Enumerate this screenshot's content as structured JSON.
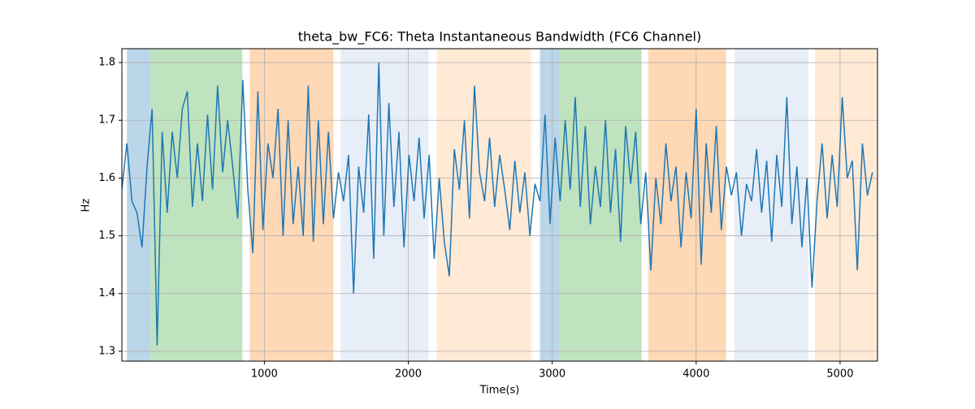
{
  "chart_data": {
    "type": "line",
    "title": "theta_bw_FC6: Theta Instantaneous Bandwidth (FC6 Channel)",
    "xlabel": "Time(s)",
    "ylabel": "Hz",
    "xlim": [
      10,
      5260
    ],
    "ylim": [
      1.283,
      1.824
    ],
    "xticks": [
      1000,
      2000,
      3000,
      4000,
      5000
    ],
    "yticks": [
      1.3,
      1.4,
      1.5,
      1.6,
      1.7,
      1.8
    ],
    "grid": true,
    "span_opacity": 0.3,
    "spans": [
      {
        "x0": 45,
        "x1": 209,
        "color": "#1f77b4"
      },
      {
        "x0": 209,
        "x1": 847,
        "color": "#2ca02c"
      },
      {
        "x0": 898,
        "x1": 1480,
        "color": "#ff7f0e"
      },
      {
        "x0": 1531,
        "x1": 2141,
        "color": "#aec7e8"
      },
      {
        "x0": 2198,
        "x1": 2853,
        "color": "#ffbb78"
      },
      {
        "x0": 2915,
        "x1": 3051,
        "color": "#1f77b4"
      },
      {
        "x0": 3051,
        "x1": 3621,
        "color": "#2ca02c"
      },
      {
        "x0": 3667,
        "x1": 4209,
        "color": "#ff7f0e"
      },
      {
        "x0": 4266,
        "x1": 4780,
        "color": "#aec7e8"
      },
      {
        "x0": 4825,
        "x1": 5260,
        "color": "#ffbb78"
      }
    ],
    "x": [
      10,
      45,
      80,
      115,
      150,
      185,
      220,
      255,
      290,
      325,
      360,
      395,
      430,
      465,
      500,
      535,
      570,
      605,
      640,
      675,
      710,
      745,
      780,
      815,
      850,
      885,
      920,
      955,
      990,
      1025,
      1060,
      1095,
      1130,
      1165,
      1200,
      1235,
      1270,
      1305,
      1340,
      1375,
      1410,
      1445,
      1480,
      1515,
      1550,
      1585,
      1620,
      1655,
      1690,
      1725,
      1760,
      1795,
      1830,
      1865,
      1900,
      1935,
      1970,
      2005,
      2040,
      2075,
      2110,
      2145,
      2180,
      2215,
      2250,
      2285,
      2320,
      2355,
      2390,
      2425,
      2460,
      2495,
      2530,
      2565,
      2600,
      2635,
      2670,
      2705,
      2740,
      2775,
      2810,
      2845,
      2880,
      2915,
      2950,
      2985,
      3020,
      3055,
      3090,
      3125,
      3160,
      3195,
      3230,
      3265,
      3300,
      3335,
      3370,
      3405,
      3440,
      3475,
      3510,
      3545,
      3580,
      3615,
      3650,
      3685,
      3720,
      3755,
      3790,
      3825,
      3860,
      3895,
      3930,
      3965,
      4000,
      4035,
      4070,
      4105,
      4140,
      4175,
      4210,
      4245,
      4280,
      4315,
      4350,
      4385,
      4420,
      4455,
      4490,
      4525,
      4560,
      4595,
      4630,
      4665,
      4700,
      4735,
      4770,
      4805,
      4840,
      4875,
      4910,
      4945,
      4980,
      5015,
      5050,
      5085,
      5120,
      5155,
      5190,
      5225
    ],
    "series": [
      {
        "color": "#1f77b4",
        "values": [
          1.58,
          1.66,
          1.56,
          1.54,
          1.48,
          1.62,
          1.72,
          1.31,
          1.68,
          1.54,
          1.68,
          1.6,
          1.72,
          1.75,
          1.55,
          1.66,
          1.56,
          1.71,
          1.58,
          1.76,
          1.61,
          1.7,
          1.62,
          1.53,
          1.77,
          1.58,
          1.47,
          1.75,
          1.51,
          1.66,
          1.6,
          1.72,
          1.5,
          1.7,
          1.52,
          1.62,
          1.5,
          1.76,
          1.49,
          1.7,
          1.52,
          1.68,
          1.53,
          1.61,
          1.56,
          1.64,
          1.4,
          1.62,
          1.54,
          1.71,
          1.46,
          1.8,
          1.5,
          1.73,
          1.55,
          1.68,
          1.48,
          1.64,
          1.56,
          1.67,
          1.53,
          1.64,
          1.46,
          1.6,
          1.49,
          1.43,
          1.65,
          1.58,
          1.7,
          1.53,
          1.76,
          1.61,
          1.56,
          1.67,
          1.55,
          1.64,
          1.58,
          1.51,
          1.63,
          1.54,
          1.61,
          1.5,
          1.59,
          1.56,
          1.71,
          1.52,
          1.67,
          1.56,
          1.7,
          1.58,
          1.74,
          1.55,
          1.69,
          1.52,
          1.62,
          1.55,
          1.7,
          1.54,
          1.65,
          1.49,
          1.69,
          1.59,
          1.68,
          1.52,
          1.61,
          1.44,
          1.6,
          1.52,
          1.66,
          1.56,
          1.62,
          1.48,
          1.61,
          1.53,
          1.72,
          1.45,
          1.66,
          1.54,
          1.69,
          1.51,
          1.62,
          1.57,
          1.61,
          1.5,
          1.59,
          1.56,
          1.65,
          1.54,
          1.63,
          1.49,
          1.64,
          1.55,
          1.74,
          1.52,
          1.62,
          1.48,
          1.6,
          1.41,
          1.56,
          1.66,
          1.53,
          1.64,
          1.55,
          1.74,
          1.6,
          1.63,
          1.44,
          1.66,
          1.57,
          1.61
        ]
      }
    ]
  }
}
